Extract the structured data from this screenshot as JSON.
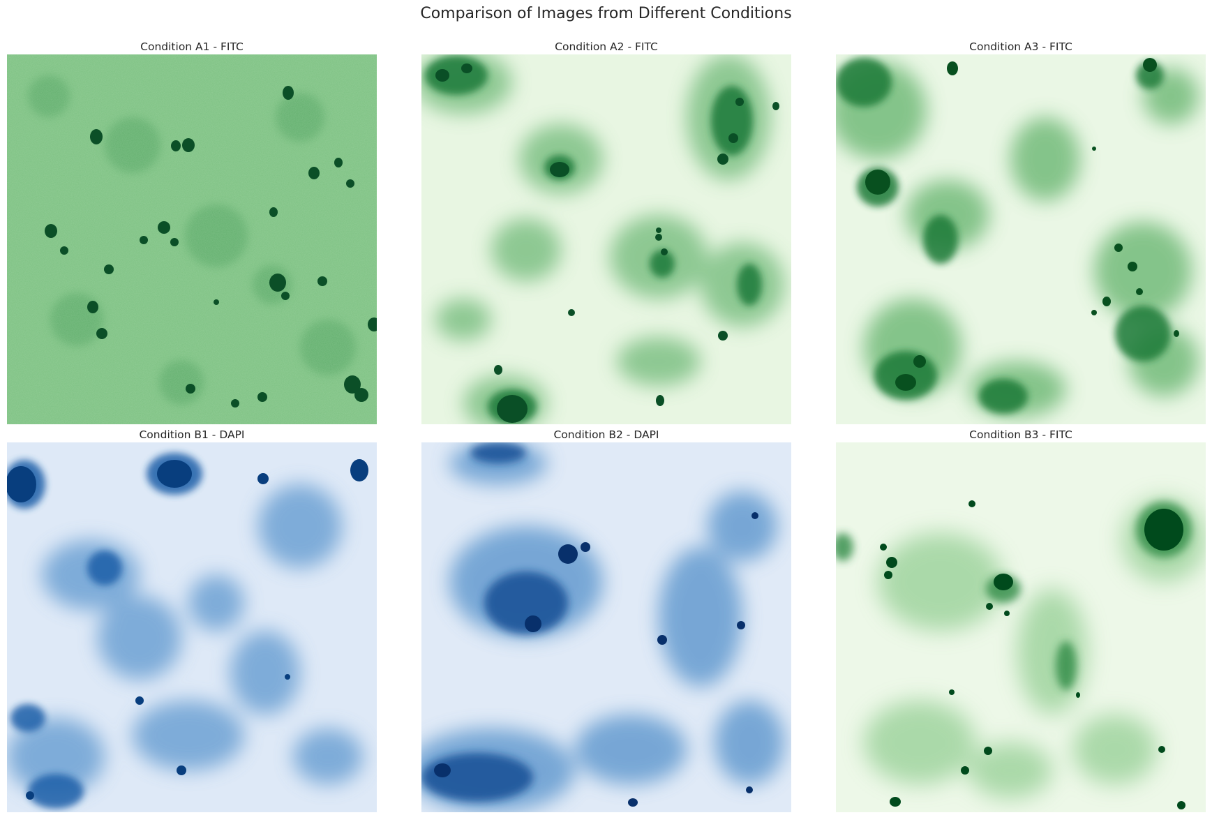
{
  "figure": {
    "title": "Comparison of Images from Different Conditions"
  },
  "panels": [
    {
      "title": "Condition A1 - FITC",
      "channel": "FITC",
      "colormap": "green-mid",
      "base_color": "#7dc182",
      "blob_color": "#0b4f27"
    },
    {
      "title": "Condition A2 - FITC",
      "channel": "FITC",
      "colormap": "green-light",
      "base_color": "#e8f6e2",
      "blob_color": "#0a4f26"
    },
    {
      "title": "Condition A3 - FITC",
      "channel": "FITC",
      "colormap": "green-light",
      "base_color": "#eaf7e5",
      "blob_color": "#08501f"
    },
    {
      "title": "Condition B1 - DAPI",
      "channel": "DAPI",
      "colormap": "blue-light",
      "base_color": "#dee9f7",
      "blob_color": "#083e7e"
    },
    {
      "title": "Condition B2 - DAPI",
      "channel": "DAPI",
      "colormap": "blue-light",
      "base_color": "#e0eaf7",
      "blob_color": "#08306b"
    },
    {
      "title": "Condition B3 - FITC",
      "channel": "FITC",
      "colormap": "green-light",
      "base_color": "#edf8e8",
      "blob_color": "#004a1c"
    }
  ]
}
